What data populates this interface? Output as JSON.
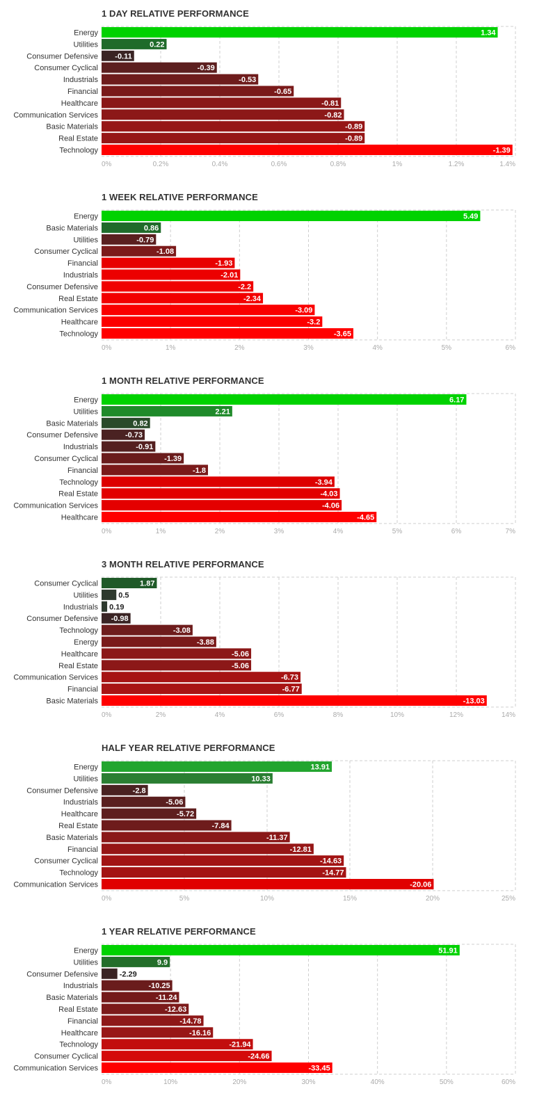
{
  "chart_data": [
    {
      "type": "bar",
      "orientation": "horizontal",
      "title": "1 DAY RELATIVE PERFORMANCE",
      "categories": [
        "Energy",
        "Utilities",
        "Consumer Defensive",
        "Consumer Cyclical",
        "Industrials",
        "Financial",
        "Healthcare",
        "Communication Services",
        "Basic Materials",
        "Real Estate",
        "Technology"
      ],
      "values": [
        1.34,
        0.22,
        -0.11,
        -0.39,
        -0.53,
        -0.65,
        -0.81,
        -0.82,
        -0.89,
        -0.89,
        -1.39
      ],
      "value_labels": [
        "1.34",
        "0.22",
        "-0.11",
        "-0.39",
        "-0.53",
        "-0.65",
        "-0.81",
        "-0.82",
        "-0.89",
        "-0.89",
        "-1.39"
      ],
      "xlim": [
        0,
        1.4
      ],
      "ticks": [
        0,
        0.2,
        0.4,
        0.6,
        0.8,
        1,
        1.2,
        1.4
      ],
      "tick_labels": [
        "0%",
        "0.2%",
        "0.4%",
        "0.6%",
        "0.8%",
        "1%",
        "1.2%",
        "1.4%"
      ],
      "bar_colors": [
        "#00d200",
        "#1f6b2a",
        "#3a2424",
        "#5c1f1f",
        "#6e1c1c",
        "#7a1a1a",
        "#8a1818",
        "#8c1818",
        "#961616",
        "#961616",
        "#ff0000"
      ]
    },
    {
      "type": "bar",
      "orientation": "horizontal",
      "title": "1 WEEK RELATIVE PERFORMANCE",
      "categories": [
        "Energy",
        "Basic Materials",
        "Utilities",
        "Consumer Cyclical",
        "Financial",
        "Industrials",
        "Consumer Defensive",
        "Real Estate",
        "Communication Services",
        "Healthcare",
        "Technology"
      ],
      "values": [
        5.49,
        0.86,
        -0.79,
        -1.08,
        -1.93,
        -2.01,
        -2.2,
        -2.34,
        -3.09,
        -3.2,
        -3.65
      ],
      "value_labels": [
        "5.49",
        "0.86",
        "-0.79",
        "-1.08",
        "-1.93",
        "-2.01",
        "-2.2",
        "-2.34",
        "-3.09",
        "-3.2",
        "-3.65"
      ],
      "xlim": [
        0,
        6
      ],
      "ticks": [
        0,
        1,
        2,
        3,
        4,
        5,
        6
      ],
      "tick_labels": [
        "0%",
        "1%",
        "2%",
        "3%",
        "4%",
        "5%",
        "6%"
      ],
      "bar_colors": [
        "#00d200",
        "#1f6b2a",
        "#5a1f1f",
        "#7c1a1a",
        "#e80000",
        "#ec0000",
        "#f00000",
        "#f20000",
        "#fa0000",
        "#fc0000",
        "#ff0000"
      ]
    },
    {
      "type": "bar",
      "orientation": "horizontal",
      "title": "1 MONTH RELATIVE PERFORMANCE",
      "categories": [
        "Energy",
        "Utilities",
        "Basic Materials",
        "Consumer Defensive",
        "Industrials",
        "Consumer Cyclical",
        "Financial",
        "Technology",
        "Real Estate",
        "Communication Services",
        "Healthcare"
      ],
      "values": [
        6.17,
        2.21,
        0.82,
        -0.73,
        -0.91,
        -1.39,
        -1.8,
        -3.94,
        -4.03,
        -4.06,
        -4.65
      ],
      "value_labels": [
        "6.17",
        "2.21",
        "0.82",
        "-0.73",
        "-0.91",
        "-1.39",
        "-1.8",
        "-3.94",
        "-4.03",
        "-4.06",
        "-4.65"
      ],
      "xlim": [
        0,
        7
      ],
      "ticks": [
        0,
        1,
        2,
        3,
        4,
        5,
        6,
        7
      ],
      "tick_labels": [
        "0%",
        "1%",
        "2%",
        "3%",
        "4%",
        "5%",
        "6%",
        "7%"
      ],
      "bar_colors": [
        "#00d200",
        "#1f8a2a",
        "#2a4a2a",
        "#4a2222",
        "#542020",
        "#6a1c1c",
        "#7a1a1a",
        "#dd0000",
        "#e20000",
        "#e40000",
        "#ff0000"
      ]
    },
    {
      "type": "bar",
      "orientation": "horizontal",
      "title": "3 MONTH RELATIVE PERFORMANCE",
      "categories": [
        "Consumer Cyclical",
        "Utilities",
        "Industrials",
        "Consumer Defensive",
        "Technology",
        "Energy",
        "Healthcare",
        "Real Estate",
        "Communication Services",
        "Financial",
        "Basic Materials"
      ],
      "values": [
        1.87,
        0.5,
        0.19,
        -0.98,
        -3.08,
        -3.88,
        -5.06,
        -5.06,
        -6.73,
        -6.77,
        -13.03
      ],
      "value_labels": [
        "1.87",
        "0.5",
        "0.19",
        "-0.98",
        "-3.08",
        "-3.88",
        "-5.06",
        "-5.06",
        "-6.73",
        "-6.77",
        "-13.03"
      ],
      "xlim": [
        0,
        14
      ],
      "ticks": [
        0,
        2,
        4,
        6,
        8,
        10,
        12,
        14
      ],
      "tick_labels": [
        "0%",
        "2%",
        "4%",
        "6%",
        "8%",
        "10%",
        "12%",
        "14%"
      ],
      "bar_colors": [
        "#1f5a28",
        "#2e3a2e",
        "#2e3a2e",
        "#3a2424",
        "#6e1c1c",
        "#7a1a1a",
        "#8c1818",
        "#8c1818",
        "#a61414",
        "#a81414",
        "#ff0000"
      ]
    },
    {
      "type": "bar",
      "orientation": "horizontal",
      "title": "HALF YEAR RELATIVE PERFORMANCE",
      "categories": [
        "Energy",
        "Utilities",
        "Consumer Defensive",
        "Industrials",
        "Healthcare",
        "Real Estate",
        "Basic Materials",
        "Financial",
        "Consumer Cyclical",
        "Technology",
        "Communication Services"
      ],
      "values": [
        13.91,
        10.33,
        -2.8,
        -5.06,
        -5.72,
        -7.84,
        -11.37,
        -12.81,
        -14.63,
        -14.77,
        -20.06
      ],
      "value_labels": [
        "13.91",
        "10.33",
        "-2.8",
        "-5.06",
        "-5.72",
        "-7.84",
        "-11.37",
        "-12.81",
        "-14.63",
        "-14.77",
        "-20.06"
      ],
      "xlim": [
        0,
        25
      ],
      "ticks": [
        0,
        5,
        10,
        15,
        20,
        25
      ],
      "tick_labels": [
        "0%",
        "5%",
        "10%",
        "15%",
        "20%",
        "25%"
      ],
      "bar_colors": [
        "#23a52f",
        "#2a7e32",
        "#4a2222",
        "#5a1f1f",
        "#5e1e1e",
        "#6e1c1c",
        "#8a1818",
        "#961616",
        "#a21414",
        "#a41414",
        "#e00000"
      ]
    },
    {
      "type": "bar",
      "orientation": "horizontal",
      "title": "1 YEAR RELATIVE PERFORMANCE",
      "categories": [
        "Energy",
        "Utilities",
        "Consumer Defensive",
        "Industrials",
        "Basic Materials",
        "Real Estate",
        "Financial",
        "Healthcare",
        "Technology",
        "Consumer Cyclical",
        "Communication Services"
      ],
      "values": [
        51.91,
        9.9,
        -2.29,
        -10.25,
        -11.24,
        -12.63,
        -14.78,
        -16.16,
        -21.94,
        -24.66,
        -33.45
      ],
      "value_labels": [
        "51.91",
        "9.9",
        "-2.29",
        "-10.25",
        "-11.24",
        "-12.63",
        "-14.78",
        "-16.16",
        "-21.94",
        "-24.66",
        "-33.45"
      ],
      "xlim": [
        0,
        60
      ],
      "ticks": [
        0,
        10,
        20,
        30,
        40,
        50,
        60
      ],
      "tick_labels": [
        "0%",
        "10%",
        "20%",
        "30%",
        "40%",
        "50%",
        "60%"
      ],
      "bar_colors": [
        "#00d200",
        "#236e2a",
        "#3a2424",
        "#6a1c1c",
        "#741a1a",
        "#7c1a1a",
        "#8e1818",
        "#981616",
        "#c20e0e",
        "#d40a0a",
        "#ff0000"
      ]
    }
  ]
}
